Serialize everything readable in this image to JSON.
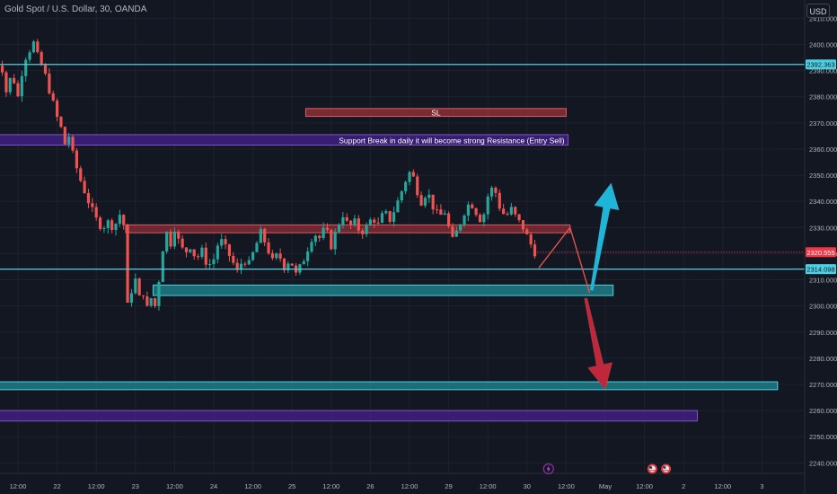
{
  "header": {
    "symbol_title": "Gold Spot / U.S. Dollar, 30, OANDA",
    "currency_button": "USD"
  },
  "colors": {
    "background": "#131722",
    "grid": "#1e2230",
    "candle_up": "#26a69a",
    "candle_down": "#ef5350",
    "axis_text": "#b2b5be",
    "cyan_line": "#4dd0e1",
    "teal_zone": "#1f7d86",
    "red_zone": "#8a2f36",
    "purple_zone": "#3f1f80",
    "up_arrow": "#1fb5d8",
    "down_arrow": "#c0273a"
  },
  "chart_data": {
    "type": "candlestick",
    "ylim": [
      2236,
      2417
    ],
    "y_ticks": [
      2410,
      2400,
      2390,
      2380,
      2370,
      2360,
      2350,
      2340,
      2330,
      2320,
      2310,
      2300,
      2290,
      2280,
      2270,
      2260,
      2250,
      2240
    ],
    "y_tick_labels": [
      "2410.000",
      "2400.000",
      "2390.000",
      "2380.000",
      "2370.000",
      "2360.000",
      "2350.000",
      "2340.000",
      "2330.000",
      "2320.000",
      "2310.000",
      "2300.000",
      "2290.000",
      "2280.000",
      "2270.000",
      "2260.000",
      "2250.000",
      "2240.000"
    ],
    "x_ticks": [
      {
        "label": "12:00",
        "x": 0
      },
      {
        "label": "22",
        "x": 1
      },
      {
        "label": "12:00",
        "x": 2
      },
      {
        "label": "23",
        "x": 3
      },
      {
        "label": "12:00",
        "x": 4
      },
      {
        "label": "24",
        "x": 5
      },
      {
        "label": "12:00",
        "x": 6
      },
      {
        "label": "25",
        "x": 7
      },
      {
        "label": "12:00",
        "x": 8
      },
      {
        "label": "26",
        "x": 9
      },
      {
        "label": "12:00",
        "x": 10
      },
      {
        "label": "29",
        "x": 11
      },
      {
        "label": "12:00",
        "x": 12
      },
      {
        "label": "30",
        "x": 13
      },
      {
        "label": "12:00",
        "x": 14
      },
      {
        "label": "May",
        "x": 15
      },
      {
        "label": "12:00",
        "x": 16
      },
      {
        "label": "2",
        "x": 17
      },
      {
        "label": "12:00",
        "x": 18
      },
      {
        "label": "3",
        "x": 19
      }
    ],
    "x_range": [
      -0.6,
      19.4
    ],
    "price_path": [
      [
        -0.6,
        2388
      ],
      [
        -0.45,
        2395
      ],
      [
        -0.3,
        2382
      ],
      [
        -0.15,
        2389
      ],
      [
        0.0,
        2380
      ],
      [
        0.15,
        2394
      ],
      [
        0.3,
        2398
      ],
      [
        0.38,
        2402
      ],
      [
        0.45,
        2397
      ],
      [
        0.55,
        2394
      ],
      [
        0.7,
        2388
      ],
      [
        0.85,
        2380
      ],
      [
        1.0,
        2372
      ],
      [
        1.1,
        2368
      ],
      [
        1.2,
        2362
      ],
      [
        1.3,
        2365
      ],
      [
        1.4,
        2358
      ],
      [
        1.55,
        2350
      ],
      [
        1.7,
        2344
      ],
      [
        1.85,
        2338
      ],
      [
        2.0,
        2333
      ],
      [
        2.15,
        2330
      ],
      [
        2.3,
        2332
      ],
      [
        2.45,
        2330
      ],
      [
        2.6,
        2335
      ],
      [
        2.7,
        2331
      ],
      [
        2.8,
        2300
      ],
      [
        2.9,
        2306
      ],
      [
        3.0,
        2310
      ],
      [
        3.1,
        2303
      ],
      [
        3.2,
        2305
      ],
      [
        3.3,
        2299
      ],
      [
        3.4,
        2303
      ],
      [
        3.5,
        2300
      ],
      [
        3.6,
        2310
      ],
      [
        3.7,
        2322
      ],
      [
        3.8,
        2328
      ],
      [
        3.9,
        2324
      ],
      [
        4.0,
        2330
      ],
      [
        4.1,
        2325
      ],
      [
        4.25,
        2320
      ],
      [
        4.4,
        2323
      ],
      [
        4.55,
        2318
      ],
      [
        4.7,
        2321
      ],
      [
        4.85,
        2315
      ],
      [
        5.0,
        2318
      ],
      [
        5.15,
        2326
      ],
      [
        5.3,
        2322
      ],
      [
        5.45,
        2318
      ],
      [
        5.6,
        2313
      ],
      [
        5.75,
        2318
      ],
      [
        5.9,
        2316
      ],
      [
        6.05,
        2322
      ],
      [
        6.2,
        2328
      ],
      [
        6.35,
        2323
      ],
      [
        6.5,
        2317
      ],
      [
        6.65,
        2320
      ],
      [
        6.8,
        2315
      ],
      [
        6.95,
        2318
      ],
      [
        7.1,
        2312
      ],
      [
        7.25,
        2316
      ],
      [
        7.4,
        2322
      ],
      [
        7.55,
        2328
      ],
      [
        7.7,
        2326
      ],
      [
        7.85,
        2330
      ],
      [
        8.0,
        2323
      ],
      [
        8.15,
        2330
      ],
      [
        8.3,
        2335
      ],
      [
        8.45,
        2330
      ],
      [
        8.6,
        2332
      ],
      [
        8.75,
        2328
      ],
      [
        8.9,
        2330
      ],
      [
        9.05,
        2334
      ],
      [
        9.2,
        2331
      ],
      [
        9.35,
        2336
      ],
      [
        9.5,
        2333
      ],
      [
        9.65,
        2338
      ],
      [
        9.8,
        2344
      ],
      [
        9.95,
        2350
      ],
      [
        10.05,
        2352
      ],
      [
        10.15,
        2346
      ],
      [
        10.3,
        2340
      ],
      [
        10.45,
        2344
      ],
      [
        10.6,
        2338
      ],
      [
        10.75,
        2334
      ],
      [
        10.9,
        2336
      ],
      [
        11.0,
        2330
      ],
      [
        11.1,
        2325
      ],
      [
        11.25,
        2330
      ],
      [
        11.4,
        2336
      ],
      [
        11.55,
        2340
      ],
      [
        11.7,
        2336
      ],
      [
        11.85,
        2332
      ],
      [
        12.0,
        2342
      ],
      [
        12.15,
        2346
      ],
      [
        12.3,
        2338
      ],
      [
        12.45,
        2334
      ],
      [
        12.6,
        2337
      ],
      [
        12.75,
        2333
      ],
      [
        12.9,
        2330
      ],
      [
        13.05,
        2325
      ],
      [
        13.2,
        2320.555
      ]
    ],
    "levels": [
      {
        "name": "resistance-line-top",
        "price": 2392.363,
        "label": "2392.363"
      },
      {
        "name": "support-line",
        "price": 2314.098,
        "label": "2314.098"
      },
      {
        "name": "current-price",
        "price": 2320.555,
        "label": "2320.555"
      }
    ],
    "zones": [
      {
        "name": "sl-zone",
        "x0": 7.35,
        "x1": 14.0,
        "y0": 2372.5,
        "y1": 2375.5,
        "kind": "red",
        "label": "SL"
      },
      {
        "name": "support-break-zone",
        "x0": -0.6,
        "x1": 14.05,
        "y0": 2361.5,
        "y1": 2365.5,
        "kind": "purple",
        "label": "Support Break in daily it will become strong Resistance (Entry Sell)"
      },
      {
        "name": "entry-resistance-zone",
        "x0": 2.75,
        "x1": 14.1,
        "y0": 2328,
        "y1": 2331,
        "kind": "red",
        "label": ""
      },
      {
        "name": "demand-zone",
        "x0": 3.45,
        "x1": 15.2,
        "y0": 2304,
        "y1": 2308,
        "kind": "teal",
        "label": ""
      },
      {
        "name": "target-zone-1",
        "x0": -0.6,
        "x1": 19.4,
        "y0": 2268,
        "y1": 2271,
        "kind": "teal",
        "label": ""
      },
      {
        "name": "target-zone-2",
        "x0": -0.6,
        "x1": 17.35,
        "y0": 2256,
        "y1": 2260,
        "kind": "purple",
        "label": ""
      }
    ],
    "projection_path": [
      [
        13.3,
        2314.5
      ],
      [
        14.1,
        2330
      ],
      [
        14.6,
        2305
      ]
    ],
    "arrows": [
      {
        "name": "bullish-arrow",
        "from": [
          14.65,
          2306
        ],
        "to": [
          15.15,
          2347
        ],
        "kind": "up"
      },
      {
        "name": "bearish-arrow",
        "from": [
          14.5,
          2303
        ],
        "to": [
          15.0,
          2268
        ],
        "kind": "down"
      }
    ],
    "grid": true,
    "legend": "none"
  }
}
